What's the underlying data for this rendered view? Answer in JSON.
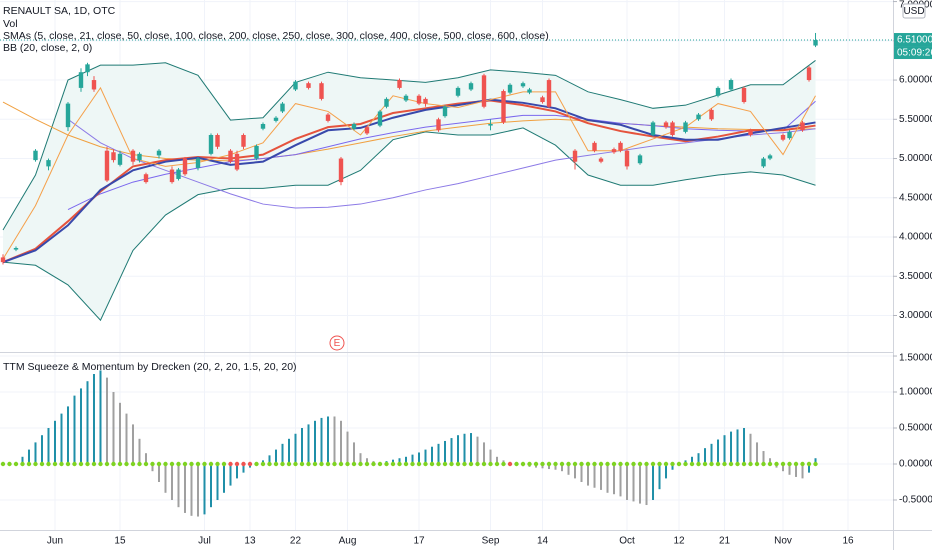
{
  "chart_data": [
    {
      "type": "candlestick",
      "title": "RENAULT SA, 1D, OTC",
      "volume_label": "Vol",
      "sma_legend": "SMAs (5, close, 21, close, 50, close, 100, close, 200, close, 250, close, 300, close, 400, close, 500, close, 600, close)",
      "bb_legend": "BB (20, close, 2, 0)",
      "currency": "USD",
      "countdown": "05:09:26",
      "earnings_marker": "E",
      "last_price": {
        "value": 6.51,
        "label": "6.510000"
      },
      "up_color": "#26a69a",
      "down_color": "#ef5350",
      "xlim": [
        -0.46,
        136.92
      ],
      "ylim": [
        2.535,
        7.02
      ],
      "yticks": [
        {
          "value": 3.0,
          "label": "3.000000"
        },
        {
          "value": 3.5,
          "label": "3.500000"
        },
        {
          "value": 4.0,
          "label": "4.000000"
        },
        {
          "value": 4.5,
          "label": "4.500000"
        },
        {
          "value": 5.0,
          "label": "5.000000"
        },
        {
          "value": 5.5,
          "label": "5.500000"
        },
        {
          "value": 6.0,
          "label": "6.000000"
        },
        {
          "value": 6.5,
          "label": "6.500000"
        },
        {
          "value": 7.0,
          "label": "7.000000"
        }
      ],
      "grid": true,
      "candles": {
        "x": [
          0,
          2,
          5,
          7,
          10,
          12,
          13,
          14,
          16,
          17,
          18,
          20,
          21,
          22,
          24,
          26,
          27,
          28,
          30,
          32,
          33,
          35,
          36,
          37,
          39,
          40,
          42,
          43,
          45,
          47,
          49,
          50,
          52,
          54,
          56,
          58,
          59,
          61,
          62,
          64,
          65,
          67,
          68,
          70,
          72,
          74,
          75,
          77,
          78,
          80,
          81,
          83,
          84,
          88,
          91,
          92,
          94,
          95,
          96,
          98,
          100,
          102,
          103,
          105,
          107,
          109,
          110,
          112,
          114,
          115,
          117,
          118,
          120,
          121,
          123,
          124,
          125
        ],
        "open": [
          3.74,
          3.84,
          4.98,
          4.9,
          5.4,
          5.9,
          6.1,
          6.0,
          5.1,
          5.08,
          4.92,
          5.1,
          4.98,
          4.8,
          5.04,
          4.86,
          4.74,
          5.0,
          4.88,
          5.06,
          5.3,
          5.1,
          5.06,
          5.3,
          5.0,
          5.38,
          5.48,
          5.6,
          5.88,
          5.96,
          5.96,
          5.56,
          5.0,
          5.38,
          5.4,
          5.42,
          5.66,
          6.0,
          5.74,
          5.8,
          5.76,
          5.5,
          5.54,
          5.8,
          5.88,
          6.06,
          5.42,
          5.86,
          5.84,
          5.92,
          5.84,
          5.78,
          6.0,
          5.1,
          5.2,
          5.0,
          5.12,
          5.2,
          5.1,
          4.94,
          5.3,
          5.46,
          5.46,
          5.34,
          5.5,
          5.62,
          5.8,
          5.88,
          5.9,
          5.36,
          4.9,
          5.0,
          5.3,
          5.26,
          5.46,
          6.16,
          6.44
        ],
        "high": [
          3.78,
          3.88,
          5.12,
          5.0,
          5.72,
          6.15,
          6.22,
          6.05,
          5.15,
          5.12,
          5.1,
          5.12,
          5.08,
          4.82,
          5.12,
          4.9,
          4.88,
          5.02,
          5.02,
          5.32,
          5.32,
          5.12,
          5.1,
          5.32,
          5.18,
          5.46,
          5.54,
          5.72,
          6.0,
          5.98,
          5.98,
          5.58,
          5.02,
          5.46,
          5.42,
          5.62,
          5.78,
          6.02,
          5.82,
          5.82,
          5.78,
          5.52,
          5.68,
          5.92,
          5.98,
          6.08,
          5.5,
          5.88,
          5.96,
          5.98,
          5.9,
          5.8,
          6.02,
          5.12,
          5.22,
          5.02,
          5.14,
          5.22,
          5.12,
          5.06,
          5.48,
          5.48,
          5.48,
          5.48,
          5.58,
          5.64,
          5.92,
          6.02,
          5.92,
          5.38,
          5.02,
          5.06,
          5.32,
          5.36,
          5.48,
          6.18,
          6.6
        ],
        "low": [
          3.65,
          3.82,
          4.96,
          4.85,
          5.35,
          5.85,
          6.05,
          5.85,
          4.7,
          4.95,
          4.9,
          4.92,
          4.95,
          4.68,
          5.0,
          4.68,
          4.72,
          4.78,
          4.85,
          5.04,
          5.12,
          4.94,
          4.84,
          5.12,
          4.98,
          5.36,
          5.46,
          5.58,
          5.86,
          5.88,
          5.74,
          5.46,
          4.66,
          5.36,
          5.3,
          5.4,
          5.64,
          5.88,
          5.72,
          5.68,
          5.66,
          5.34,
          5.52,
          5.78,
          5.86,
          5.64,
          5.36,
          5.44,
          5.82,
          5.9,
          5.82,
          5.7,
          5.64,
          4.86,
          5.08,
          4.94,
          5.06,
          5.08,
          4.86,
          4.92,
          5.28,
          5.38,
          5.28,
          5.32,
          5.48,
          5.48,
          5.78,
          5.86,
          5.7,
          5.28,
          4.88,
          4.98,
          5.22,
          5.24,
          5.34,
          5.98,
          6.42
        ],
        "close": [
          3.68,
          3.86,
          5.1,
          4.98,
          5.7,
          6.1,
          6.2,
          5.88,
          4.72,
          4.98,
          5.06,
          4.96,
          5.06,
          4.7,
          5.1,
          4.7,
          4.86,
          4.8,
          5.0,
          5.3,
          5.15,
          4.96,
          4.86,
          5.15,
          5.16,
          5.44,
          5.52,
          5.7,
          5.98,
          5.9,
          5.76,
          5.48,
          4.7,
          5.44,
          5.32,
          5.6,
          5.76,
          5.9,
          5.8,
          5.7,
          5.7,
          5.36,
          5.66,
          5.9,
          5.96,
          5.66,
          5.44,
          5.46,
          5.94,
          5.96,
          5.88,
          5.72,
          5.66,
          4.96,
          5.1,
          4.96,
          5.08,
          5.1,
          4.9,
          5.04,
          5.46,
          5.4,
          5.3,
          5.46,
          5.56,
          5.5,
          5.9,
          6.0,
          5.72,
          5.3,
          5.0,
          5.04,
          5.24,
          5.34,
          5.36,
          6.0,
          6.51
        ]
      },
      "bb": {
        "color": "#1f7a74",
        "fill": "#eef7f6",
        "x": [
          0,
          5,
          10,
          15,
          20,
          25,
          30,
          35,
          40,
          45,
          50,
          55,
          60,
          65,
          70,
          75,
          80,
          85,
          90,
          95,
          100,
          105,
          110,
          115,
          120,
          125
        ],
        "upper": [
          4.09,
          4.79,
          6.0,
          6.19,
          6.19,
          6.22,
          6.06,
          5.49,
          5.52,
          5.97,
          6.1,
          6.03,
          6.0,
          5.97,
          6.03,
          6.13,
          6.1,
          6.06,
          5.85,
          5.75,
          5.64,
          5.68,
          5.81,
          5.94,
          5.94,
          6.25
        ],
        "lower": [
          3.68,
          3.64,
          3.39,
          2.94,
          3.83,
          4.28,
          4.54,
          4.62,
          4.62,
          4.66,
          4.66,
          4.85,
          5.24,
          5.34,
          5.3,
          5.3,
          5.39,
          5.17,
          4.79,
          4.66,
          4.66,
          4.73,
          4.79,
          4.83,
          4.79,
          4.66
        ]
      },
      "lines": {
        "x": [
          0,
          5,
          10,
          15,
          20,
          25,
          30,
          35,
          40,
          45,
          50,
          55,
          60,
          65,
          70,
          75,
          80,
          85,
          90,
          95,
          100,
          105,
          110,
          115,
          120,
          125
        ],
        "series": [
          {
            "color": "#f0a040",
            "line_width": 1,
            "values": [
              5.72,
              5.5,
              5.3,
              5.15,
              5.05,
              5.0,
              4.98,
              4.97,
              5.0,
              5.05,
              5.12,
              5.2,
              5.28,
              5.35,
              5.4,
              5.45,
              5.48,
              5.5,
              5.48,
              5.45,
              5.42,
              5.4,
              5.38,
              5.37,
              5.37,
              5.38
            ]
          },
          {
            "color": "#8c7ae6",
            "line_width": 1,
            "values": [
              null,
              null,
              5.5,
              5.2,
              5.0,
              4.85,
              4.7,
              4.55,
              4.42,
              4.37,
              4.38,
              4.42,
              4.5,
              4.6,
              4.68,
              4.78,
              4.88,
              4.98,
              5.04,
              5.1,
              5.16,
              5.2,
              5.25,
              5.3,
              5.33,
              5.38
            ]
          },
          {
            "color": "#7b68ee",
            "line_width": 1,
            "values": [
              null,
              null,
              4.35,
              4.55,
              4.7,
              4.8,
              4.88,
              4.96,
              5.0,
              5.05,
              5.15,
              5.25,
              5.33,
              5.4,
              5.45,
              5.5,
              5.55,
              5.55,
              5.5,
              5.45,
              5.42,
              5.38,
              5.36,
              5.35,
              5.36,
              5.73
            ]
          },
          {
            "color": "#e5533d",
            "line_width": 2,
            "values": [
              3.68,
              3.85,
              4.2,
              4.58,
              4.9,
              4.98,
              5.02,
              5.0,
              5.05,
              5.25,
              5.4,
              5.44,
              5.58,
              5.64,
              5.7,
              5.74,
              5.68,
              5.6,
              5.45,
              5.35,
              5.28,
              5.22,
              5.28,
              5.36,
              5.36,
              5.42
            ]
          },
          {
            "color": "#3949ab",
            "line_width": 2,
            "values": [
              3.68,
              3.83,
              4.15,
              4.6,
              4.85,
              4.96,
              5.01,
              4.92,
              4.96,
              5.17,
              5.36,
              5.39,
              5.52,
              5.62,
              5.68,
              5.75,
              5.71,
              5.64,
              5.49,
              5.43,
              5.3,
              5.24,
              5.24,
              5.32,
              5.39,
              5.46
            ]
          },
          {
            "color": "#f5a04a",
            "line_width": 1,
            "values": [
              3.72,
              4.4,
              5.3,
              5.9,
              5.0,
              4.9,
              4.95,
              5.05,
              5.2,
              5.7,
              5.6,
              5.3,
              5.8,
              5.7,
              5.65,
              5.75,
              5.85,
              5.85,
              5.1,
              5.1,
              5.25,
              5.4,
              5.7,
              5.6,
              5.05,
              5.8
            ]
          }
        ]
      }
    },
    {
      "type": "bar",
      "title": "TTM Squeeze & Momentum by Drecken (20, 2, 20, 1.5, 20, 20)",
      "rising_color": "#1f8fa8",
      "falling_color": "#a0a0a0",
      "squeeze_on_color": "#ef5350",
      "squeeze_off_color": "#7ed321",
      "squeeze_x": [
        35,
        36,
        37,
        38,
        78
      ],
      "xlim": [
        -0.46,
        136.92
      ],
      "xticks": [
        {
          "value": 8,
          "label": "Jun"
        },
        {
          "value": 18,
          "label": "15"
        },
        {
          "value": 31,
          "label": "Jul"
        },
        {
          "value": 38,
          "label": "13"
        },
        {
          "value": 45,
          "label": "22"
        },
        {
          "value": 53,
          "label": "Aug"
        },
        {
          "value": 64,
          "label": "17"
        },
        {
          "value": 75,
          "label": "Sep"
        },
        {
          "value": 83,
          "label": "14"
        },
        {
          "value": 96,
          "label": "Oct"
        },
        {
          "value": 104,
          "label": "12"
        },
        {
          "value": 111,
          "label": "21"
        },
        {
          "value": 120,
          "label": "Nov"
        },
        {
          "value": 130,
          "label": "16"
        }
      ],
      "ylim": [
        -0.917,
        1.542
      ],
      "yticks": [
        {
          "value": -0.5,
          "label": "-0.500000"
        },
        {
          "value": 0.0,
          "label": "0.000000"
        },
        {
          "value": 0.5,
          "label": "0.500000"
        },
        {
          "value": 1.0,
          "label": "1.000000"
        },
        {
          "value": 1.5,
          "label": "1.500000"
        }
      ],
      "grid": true,
      "values": [
        0.02,
        0.02,
        0.02,
        0.1,
        0.2,
        0.3,
        0.4,
        0.5,
        0.6,
        0.7,
        0.8,
        0.95,
        1.05,
        1.15,
        1.25,
        1.3,
        1.2,
        1.0,
        0.85,
        0.7,
        0.55,
        0.35,
        0.15,
        -0.1,
        -0.25,
        -0.4,
        -0.5,
        -0.6,
        -0.68,
        -0.72,
        -0.73,
        -0.7,
        -0.6,
        -0.5,
        -0.4,
        -0.3,
        -0.2,
        -0.12,
        -0.05,
        0.0,
        0.05,
        0.12,
        0.2,
        0.28,
        0.35,
        0.42,
        0.5,
        0.55,
        0.6,
        0.64,
        0.66,
        0.66,
        0.6,
        0.45,
        0.3,
        0.15,
        0.08,
        0.04,
        0.02,
        0.04,
        0.06,
        0.08,
        0.1,
        0.13,
        0.16,
        0.2,
        0.24,
        0.28,
        0.32,
        0.36,
        0.4,
        0.42,
        0.43,
        0.38,
        0.3,
        0.2,
        0.1,
        0.05,
        0.02,
        -0.02,
        -0.03,
        -0.04,
        -0.05,
        -0.06,
        -0.07,
        -0.08,
        -0.1,
        -0.15,
        -0.2,
        -0.25,
        -0.3,
        -0.33,
        -0.36,
        -0.4,
        -0.42,
        -0.45,
        -0.5,
        -0.52,
        -0.55,
        -0.57,
        -0.5,
        -0.35,
        -0.2,
        -0.08,
        0.0,
        0.05,
        0.1,
        0.15,
        0.22,
        0.28,
        0.34,
        0.4,
        0.45,
        0.48,
        0.5,
        0.42,
        0.3,
        0.18,
        0.08,
        -0.05,
        -0.1,
        -0.15,
        -0.18,
        -0.2,
        -0.12,
        0.08
      ]
    }
  ]
}
